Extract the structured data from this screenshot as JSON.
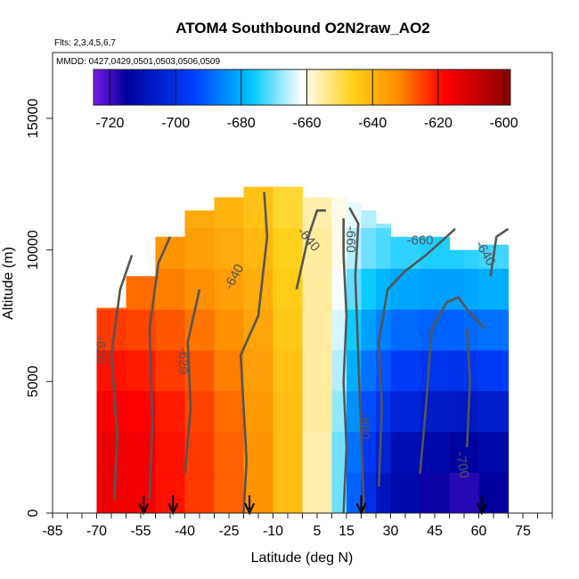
{
  "chart_data": {
    "type": "heatmap",
    "title": "ATOM4 Southbound O2N2raw_AO2",
    "subtitle_flights": "Flts: 2,3,4,5,6,7",
    "subtitle_dates": "MMDD: 0427,0429,0501,0503,0506,0509",
    "xlabel": "Latitude (deg N)",
    "ylabel": "Altitude (m)",
    "xlim": [
      -85,
      85
    ],
    "ylim": [
      0,
      17500
    ],
    "x_ticks": [
      "-85",
      "-70",
      "-55",
      "-40",
      "-25",
      "-10",
      "5",
      "15",
      "30",
      "45",
      "60",
      "75"
    ],
    "y_ticks": [
      "0",
      "5000",
      "10000",
      "15000"
    ],
    "colorbar_ticks": [
      "-720",
      "-700",
      "-680",
      "-660",
      "-640",
      "-620",
      "-600"
    ],
    "colorbar_range": [
      -725,
      -598
    ],
    "colormap": [
      "#7a1ae8",
      "#00009c",
      "#0040ff",
      "#00c8ff",
      "#ffffff",
      "#ffd21a",
      "#ff8c00",
      "#ff0000",
      "#8b0000"
    ],
    "contour_levels": [
      -680,
      -660,
      -640,
      -620,
      -600
    ],
    "contour_labels": [
      "-640",
      "-640",
      "-660",
      "-660",
      "-680",
      "-640",
      "-620",
      "-620",
      "-700"
    ],
    "flight_markers_lat": [
      -54,
      -44,
      -18,
      20,
      61
    ],
    "lat_bins": [
      -70,
      -60,
      -50,
      -40,
      -30,
      -20,
      -10,
      0,
      10,
      15,
      20,
      25,
      30,
      40,
      50,
      55,
      60,
      70
    ],
    "alt_top": [
      7800,
      9000,
      10500,
      11500,
      12000,
      12400,
      12400,
      12400,
      12000,
      12000,
      11800,
      11500,
      11000,
      10500,
      10500,
      10000,
      10200,
      10500
    ],
    "values": [
      [
        -615,
        -616,
        -620,
        -624,
        -628,
        -634,
        -642,
        -656,
        -670,
        -690,
        -700,
        -708,
        -712,
        -716,
        -718,
        -718,
        -715
      ],
      [
        -615,
        -616,
        -620,
        -624,
        -628,
        -634,
        -642,
        -656,
        -670,
        -688,
        -697,
        -704,
        -710,
        -712,
        -714,
        -714,
        -712
      ],
      [
        -617,
        -618,
        -621,
        -625,
        -629,
        -635,
        -642,
        -655,
        -668,
        -684,
        -693,
        -698,
        -703,
        -706,
        -707,
        -707,
        -705
      ],
      [
        -620,
        -621,
        -624,
        -627,
        -631,
        -636,
        -643,
        -655,
        -666,
        -680,
        -688,
        -692,
        -696,
        -698,
        -699,
        -698,
        -696
      ],
      [
        -624,
        -625,
        -627,
        -630,
        -633,
        -637,
        -644,
        -655,
        -664,
        -676,
        -682,
        -686,
        -689,
        -690,
        -690,
        -689,
        -688
      ],
      [
        -628,
        -629,
        -631,
        -633,
        -636,
        -639,
        -645,
        -655,
        -662,
        -671,
        -676,
        -679,
        -681,
        -682,
        -682,
        -681,
        -680
      ],
      [
        -632,
        -633,
        -634,
        -636,
        -638,
        -641,
        -646,
        -655,
        -660,
        -666,
        -670,
        -672,
        -674,
        -675,
        -675,
        -674,
        -673
      ],
      [
        -634,
        -635,
        -636,
        -638,
        -640,
        -643,
        -648,
        -656,
        -660,
        -663,
        -666,
        -668,
        -669,
        -670,
        -670,
        -669,
        -668
      ]
    ]
  }
}
